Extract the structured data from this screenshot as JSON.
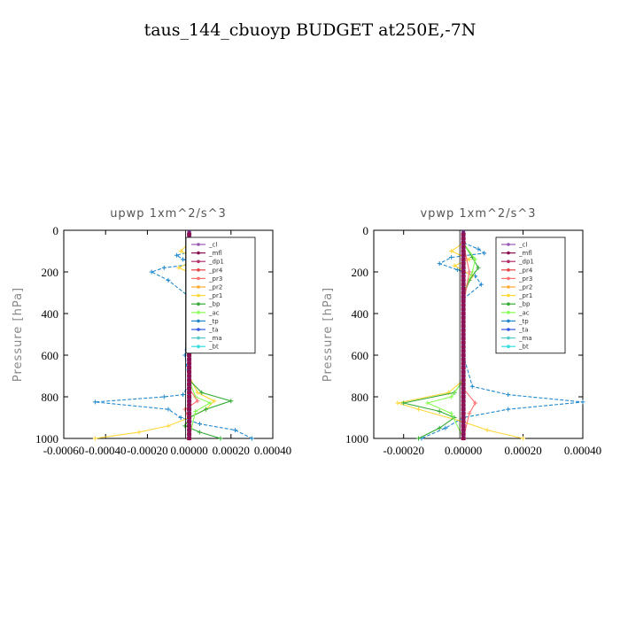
{
  "title": "taus_144_cbuoyp  BUDGET at250E,-7N",
  "legend_entries": [
    {
      "label": "_cl",
      "color": "#9b59b6"
    },
    {
      "label": "_mfl",
      "color": "#8e1050"
    },
    {
      "label": "_dp1",
      "color": "#b0306a"
    },
    {
      "label": "_pr4",
      "color": "#e84040"
    },
    {
      "label": "_pr3",
      "color": "#ff7070"
    },
    {
      "label": "_pr2",
      "color": "#ffaa33"
    },
    {
      "label": "_pr1",
      "color": "#ffd83a"
    },
    {
      "label": "_bp",
      "color": "#33aa33"
    },
    {
      "label": "_ac",
      "color": "#88ff55"
    },
    {
      "label": "_tp",
      "color": "#2288cc"
    },
    {
      "label": "_ta",
      "color": "#3355dd"
    },
    {
      "label": "_ma",
      "color": "#55cccc"
    },
    {
      "label": "_bt",
      "color": "#33dddd"
    }
  ],
  "chart_data": [
    {
      "type": "line",
      "subtitle": "upwp   1xm^2/s^3",
      "ylabel": "Pressure [hPa]",
      "xlim": [
        -0.0006,
        0.0004
      ],
      "ylim": [
        1000,
        0
      ],
      "xticks": [
        "-0.00060",
        "-0.00040",
        "-0.00020",
        "0.00000",
        "0.00020",
        "0.00040"
      ],
      "xtick_values": [
        -0.0006,
        -0.0004,
        -0.0002,
        0.0,
        0.0002,
        0.0004
      ],
      "yticks": [
        0,
        200,
        400,
        600,
        800,
        1000
      ],
      "legend_position": "top-right",
      "series": [
        {
          "name": "_tp",
          "color": "#2288cc",
          "dash": true,
          "x": [
            0.0,
            5e-05,
            -6e-05,
            -3e-05,
            4e-05,
            -0.00012,
            -0.00018,
            -0.0001,
            0.0,
            -2e-05,
            0.0,
            -3e-05,
            -0.00012,
            -0.00045,
            -0.0001,
            -4e-05,
            5e-05,
            0.00022,
            0.0003
          ],
          "y": [
            60,
            90,
            120,
            140,
            160,
            180,
            200,
            240,
            320,
            600,
            740,
            790,
            800,
            825,
            860,
            900,
            930,
            960,
            1000
          ]
        },
        {
          "name": "_pr1",
          "color": "#ffd83a",
          "dash": false,
          "x": [
            0.0,
            -4e-05,
            3e-05,
            -5e-05,
            4e-05,
            2e-05,
            0.0,
            0.0,
            4e-05,
            0.00012,
            8e-05,
            0.0,
            -0.0001,
            -0.00024,
            -0.00045
          ],
          "y": [
            60,
            100,
            140,
            180,
            220,
            280,
            380,
            700,
            780,
            820,
            860,
            900,
            940,
            970,
            1000
          ]
        },
        {
          "name": "_bp",
          "color": "#33aa33",
          "dash": false,
          "x": [
            0.0,
            3e-05,
            8e-05,
            6e-05,
            2e-05,
            0.0,
            0.0,
            6e-05,
            0.0002,
            8e-05,
            0.0,
            -2e-05,
            5e-05,
            0.00015
          ],
          "y": [
            60,
            140,
            190,
            230,
            280,
            360,
            720,
            780,
            820,
            860,
            900,
            940,
            970,
            1000
          ]
        },
        {
          "name": "_ac",
          "color": "#88ff55",
          "dash": false,
          "x": [
            0.0,
            2e-05,
            5e-05,
            3e-05,
            0.0,
            0.0,
            3e-05,
            0.0001,
            3e-05,
            0.0
          ],
          "y": [
            60,
            140,
            200,
            260,
            360,
            720,
            800,
            830,
            870,
            1000
          ]
        },
        {
          "name": "_pr3",
          "color": "#ff7070",
          "dash": false,
          "x": [
            0.0,
            2e-05,
            0.0,
            0.0,
            4e-05,
            -2e-05,
            0.0,
            0.0
          ],
          "y": [
            60,
            200,
            360,
            760,
            820,
            860,
            920,
            1000
          ]
        }
      ]
    },
    {
      "type": "line",
      "subtitle": "vpwp   1xm^2/s^3",
      "ylabel": "Pressure [hPa]",
      "xlim": [
        -0.0003,
        0.0004
      ],
      "ylim": [
        1000,
        0
      ],
      "xticks": [
        "-0.00020",
        "0.00000",
        "0.00020",
        "0.00040"
      ],
      "xtick_values": [
        -0.0002,
        0.0,
        0.0002,
        0.0004
      ],
      "yticks": [
        0,
        200,
        400,
        600,
        800,
        1000
      ],
      "legend_position": "top-right",
      "series": [
        {
          "name": "_tp",
          "color": "#2288cc",
          "dash": true,
          "x": [
            0.0,
            5e-05,
            7e-05,
            -4e-05,
            -8e-05,
            -2e-05,
            4e-05,
            6e-05,
            0.0,
            0.0,
            3e-05,
            0.00015,
            0.0004,
            0.00015,
            0.0,
            -6e-05,
            -0.00014
          ],
          "y": [
            60,
            90,
            110,
            130,
            160,
            190,
            220,
            260,
            330,
            600,
            750,
            790,
            825,
            860,
            900,
            950,
            1000
          ]
        },
        {
          "name": "_pr1",
          "color": "#ffd83a",
          "dash": false,
          "x": [
            0.0,
            -4e-05,
            2e-05,
            -3e-05,
            3e-05,
            0.0,
            0.0,
            -5e-05,
            -0.00022,
            -0.00015,
            0.0,
            8e-05,
            0.0002
          ],
          "y": [
            60,
            100,
            140,
            170,
            220,
            300,
            720,
            780,
            830,
            860,
            920,
            960,
            1000
          ]
        },
        {
          "name": "_bp",
          "color": "#33aa33",
          "dash": false,
          "x": [
            0.0,
            3e-05,
            5e-05,
            2e-05,
            0.0,
            0.0,
            -3e-05,
            -0.0002,
            -8e-05,
            -3e-05,
            -8e-05,
            -0.00015
          ],
          "y": [
            60,
            130,
            180,
            240,
            320,
            720,
            780,
            830,
            870,
            900,
            950,
            1000
          ]
        },
        {
          "name": "_ac",
          "color": "#88ff55",
          "dash": false,
          "x": [
            0.0,
            4e-05,
            3e-05,
            0.0,
            0.0,
            -4e-05,
            -0.00012,
            -4e-05,
            0.0
          ],
          "y": [
            60,
            140,
            200,
            300,
            720,
            800,
            830,
            880,
            1000
          ]
        },
        {
          "name": "_pr3",
          "color": "#ff7070",
          "dash": false,
          "x": [
            0.0,
            2e-05,
            0.0,
            0.0,
            4e-05,
            2e-05,
            0.0
          ],
          "y": [
            60,
            200,
            360,
            760,
            830,
            880,
            1000
          ]
        }
      ]
    }
  ]
}
